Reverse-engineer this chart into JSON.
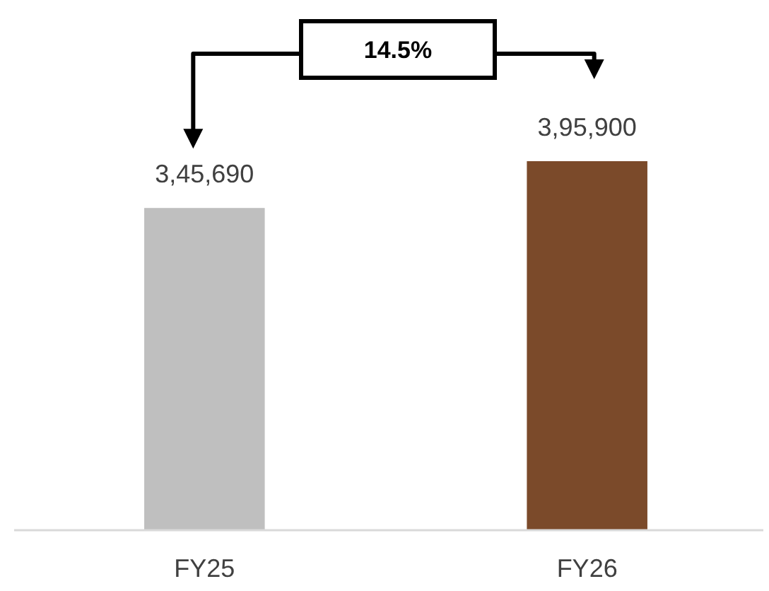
{
  "chart_data": {
    "type": "bar",
    "categories": [
      "FY25",
      "FY26"
    ],
    "values": [
      345690,
      395900
    ],
    "colors": [
      "#bfbfbf",
      "#7b4a2a"
    ],
    "value_labels": [
      "3,45,690",
      "3,95,900"
    ],
    "tick_labels": "x",
    "annotations": [
      "14.5%"
    ]
  }
}
